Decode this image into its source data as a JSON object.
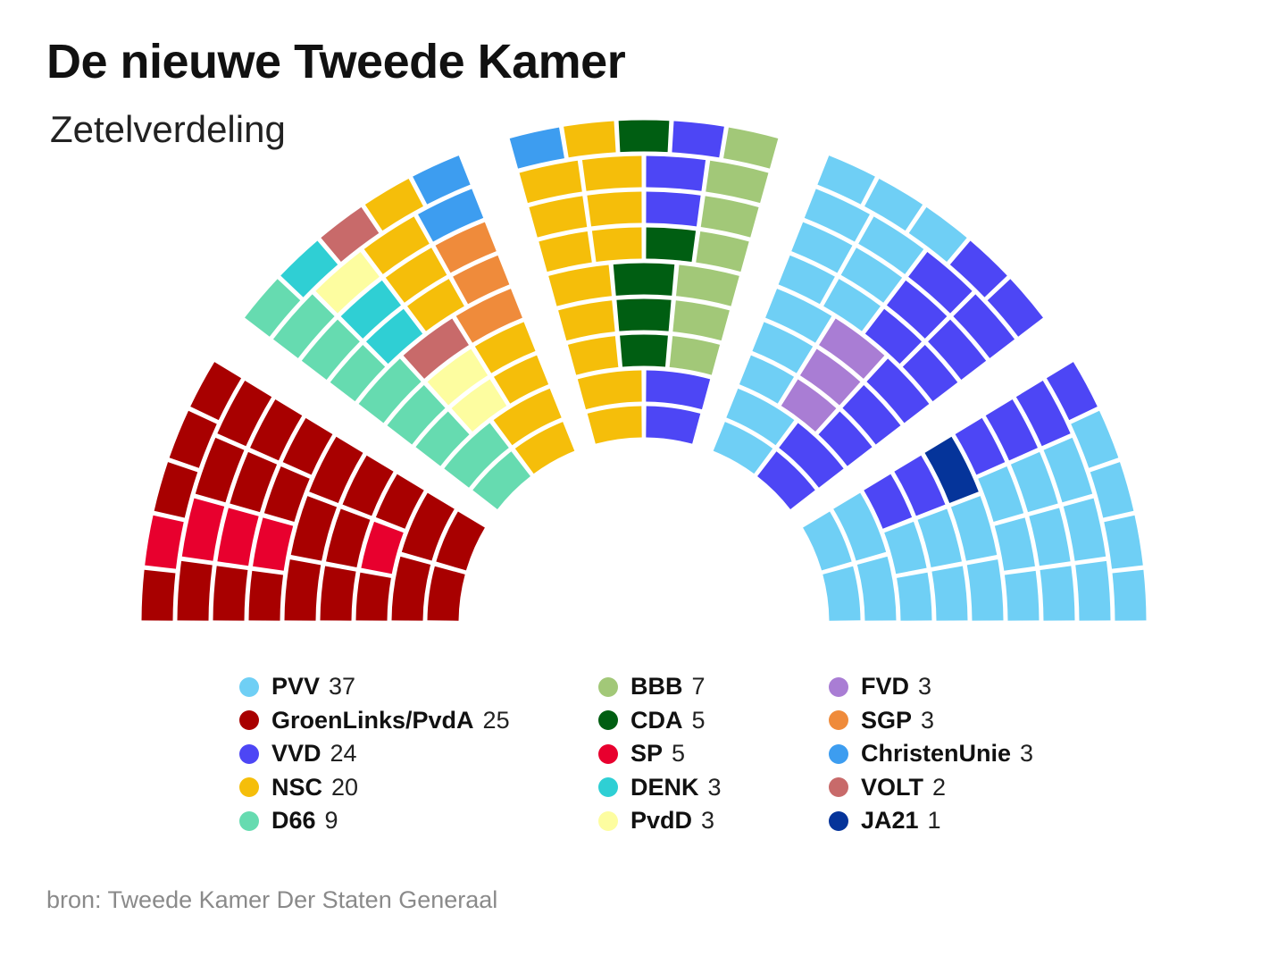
{
  "title": "De nieuwe Tweede Kamer",
  "subtitle": "Zetelverdeling",
  "source": "bron: Tweede Kamer Der Staten Generaal",
  "chart_data": {
    "type": "parliament",
    "title": "De nieuwe Tweede Kamer",
    "subtitle": "Zetelverdeling",
    "total_seats": 150,
    "parties": [
      {
        "name": "PVV",
        "seats": 37,
        "color": "#6fcff5"
      },
      {
        "name": "GroenLinks/PvdA",
        "seats": 25,
        "color": "#a80000"
      },
      {
        "name": "VVD",
        "seats": 24,
        "color": "#4d46f5"
      },
      {
        "name": "NSC",
        "seats": 20,
        "color": "#f5be0a"
      },
      {
        "name": "D66",
        "seats": 9,
        "color": "#66dbb0"
      },
      {
        "name": "BBB",
        "seats": 7,
        "color": "#a2c878"
      },
      {
        "name": "CDA",
        "seats": 5,
        "color": "#005e12"
      },
      {
        "name": "SP",
        "seats": 5,
        "color": "#e8002e"
      },
      {
        "name": "DENK",
        "seats": 3,
        "color": "#2fcfd4"
      },
      {
        "name": "PvdD",
        "seats": 3,
        "color": "#fdfda0"
      },
      {
        "name": "FVD",
        "seats": 3,
        "color": "#a97dd4"
      },
      {
        "name": "SGP",
        "seats": 3,
        "color": "#ef8b3b"
      },
      {
        "name": "ChristenUnie",
        "seats": 3,
        "color": "#3d9df0"
      },
      {
        "name": "VOLT",
        "seats": 2,
        "color": "#c86a6a"
      },
      {
        "name": "JA21",
        "seats": 1,
        "color": "#05349a"
      }
    ],
    "legend": [
      [
        "PVV",
        "GroenLinks/PvdA",
        "VVD",
        "NSC",
        "D66"
      ],
      [
        "BBB",
        "CDA",
        "SP",
        "DENK",
        "PvdD"
      ],
      [
        "FVD",
        "SGP",
        "ChristenUnie",
        "VOLT",
        "JA21"
      ]
    ],
    "seat_order": [
      "GroenLinks/PvdA",
      "SP",
      "GroenLinks/PvdA",
      "D66",
      "DENK",
      "PvdD",
      "VOLT",
      "NSC",
      "SGP",
      "ChristenUnie",
      "NSC",
      "CDA",
      "VVD",
      "BBB",
      "PVV",
      "FVD",
      "VVD",
      "JA21",
      "PVV"
    ]
  }
}
